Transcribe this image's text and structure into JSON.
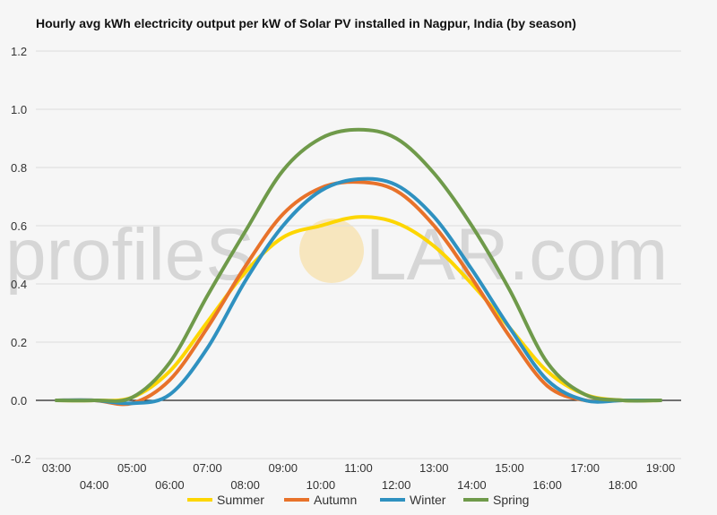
{
  "watermark": {
    "text_left": "profileS",
    "text_right": "LAR.com"
  },
  "chart_data": {
    "type": "line",
    "title": "Hourly avg kWh electricity output per kW of Solar PV installed in Nagpur, India (by season)",
    "xlabel": "",
    "ylabel": "",
    "x": [
      "03:00",
      "04:00",
      "05:00",
      "06:00",
      "07:00",
      "08:00",
      "09:00",
      "10:00",
      "11:00",
      "12:00",
      "13:00",
      "14:00",
      "15:00",
      "16:00",
      "17:00",
      "18:00",
      "19:00"
    ],
    "ylim": [
      -0.2,
      1.2
    ],
    "yticks": [
      "1.2",
      "1.0",
      "0.8",
      "0.6",
      "0.4",
      "0.2",
      "0.0",
      "-0.2"
    ],
    "ytick_values": [
      1.2,
      1.0,
      0.8,
      0.6,
      0.4,
      0.2,
      0.0,
      -0.2
    ],
    "grid": true,
    "legend": "bottom",
    "series": [
      {
        "name": "Summer",
        "color": "#fdd600",
        "values": [
          0.0,
          0.0,
          0.01,
          0.1,
          0.27,
          0.44,
          0.56,
          0.6,
          0.63,
          0.61,
          0.53,
          0.4,
          0.25,
          0.1,
          0.02,
          0.0,
          0.0
        ]
      },
      {
        "name": "Autumn",
        "color": "#e8722a",
        "values": [
          0.0,
          0.0,
          -0.01,
          0.07,
          0.25,
          0.46,
          0.64,
          0.73,
          0.75,
          0.72,
          0.6,
          0.42,
          0.22,
          0.05,
          0.0,
          0.0,
          0.0
        ]
      },
      {
        "name": "Winter",
        "color": "#2f91c0",
        "values": [
          0.0,
          0.0,
          -0.01,
          0.02,
          0.18,
          0.41,
          0.6,
          0.72,
          0.76,
          0.74,
          0.63,
          0.45,
          0.25,
          0.07,
          0.0,
          0.0,
          0.0
        ]
      },
      {
        "name": "Spring",
        "color": "#6f9a4a",
        "values": [
          0.0,
          0.0,
          0.01,
          0.13,
          0.36,
          0.58,
          0.79,
          0.9,
          0.93,
          0.9,
          0.78,
          0.6,
          0.38,
          0.13,
          0.02,
          0.0,
          0.0
        ]
      }
    ]
  }
}
